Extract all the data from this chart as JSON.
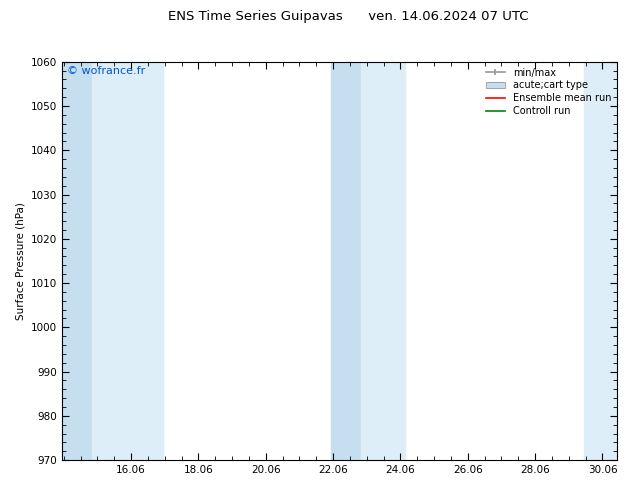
{
  "title_left": "ENS Time Series Guipavas",
  "title_right": "ven. 14.06.2024 07 UTC",
  "ylabel": "Surface Pressure (hPa)",
  "ylim": [
    970,
    1060
  ],
  "yticks": [
    970,
    980,
    990,
    1000,
    1010,
    1020,
    1030,
    1040,
    1050,
    1060
  ],
  "xlim_start": 14.0,
  "xlim_end": 30.5,
  "xtick_positions": [
    16.06,
    18.06,
    20.06,
    22.06,
    24.06,
    26.06,
    28.06,
    30.06
  ],
  "xtick_labels": [
    "16.06",
    "18.06",
    "20.06",
    "22.06",
    "24.06",
    "26.06",
    "28.06",
    "30.06"
  ],
  "shaded_bands": [
    {
      "xmin": 14.0,
      "xmax": 14.9
    },
    {
      "xmin": 14.9,
      "xmax": 17.0
    },
    {
      "xmin": 22.0,
      "xmax": 22.9
    },
    {
      "xmin": 22.9,
      "xmax": 24.2
    },
    {
      "xmin": 29.5,
      "xmax": 30.5
    }
  ],
  "shade_color_dark": "#c5dff0",
  "shade_color_light": "#ddeef8",
  "background_color": "#ffffff",
  "watermark_text": "© wofrance.fr",
  "watermark_color": "#0055cc",
  "legend_entries": [
    {
      "label": "min/max",
      "color": "#999999",
      "type": "errorbar"
    },
    {
      "label": "acute;cart type",
      "color": "#c5dff0",
      "type": "rect"
    },
    {
      "label": "Ensemble mean run",
      "color": "#ff0000",
      "type": "line"
    },
    {
      "label": "Controll run",
      "color": "#008800",
      "type": "line"
    }
  ],
  "font_size_title": 9.5,
  "font_size_axis": 7.5,
  "font_size_watermark": 8,
  "font_size_legend": 7
}
